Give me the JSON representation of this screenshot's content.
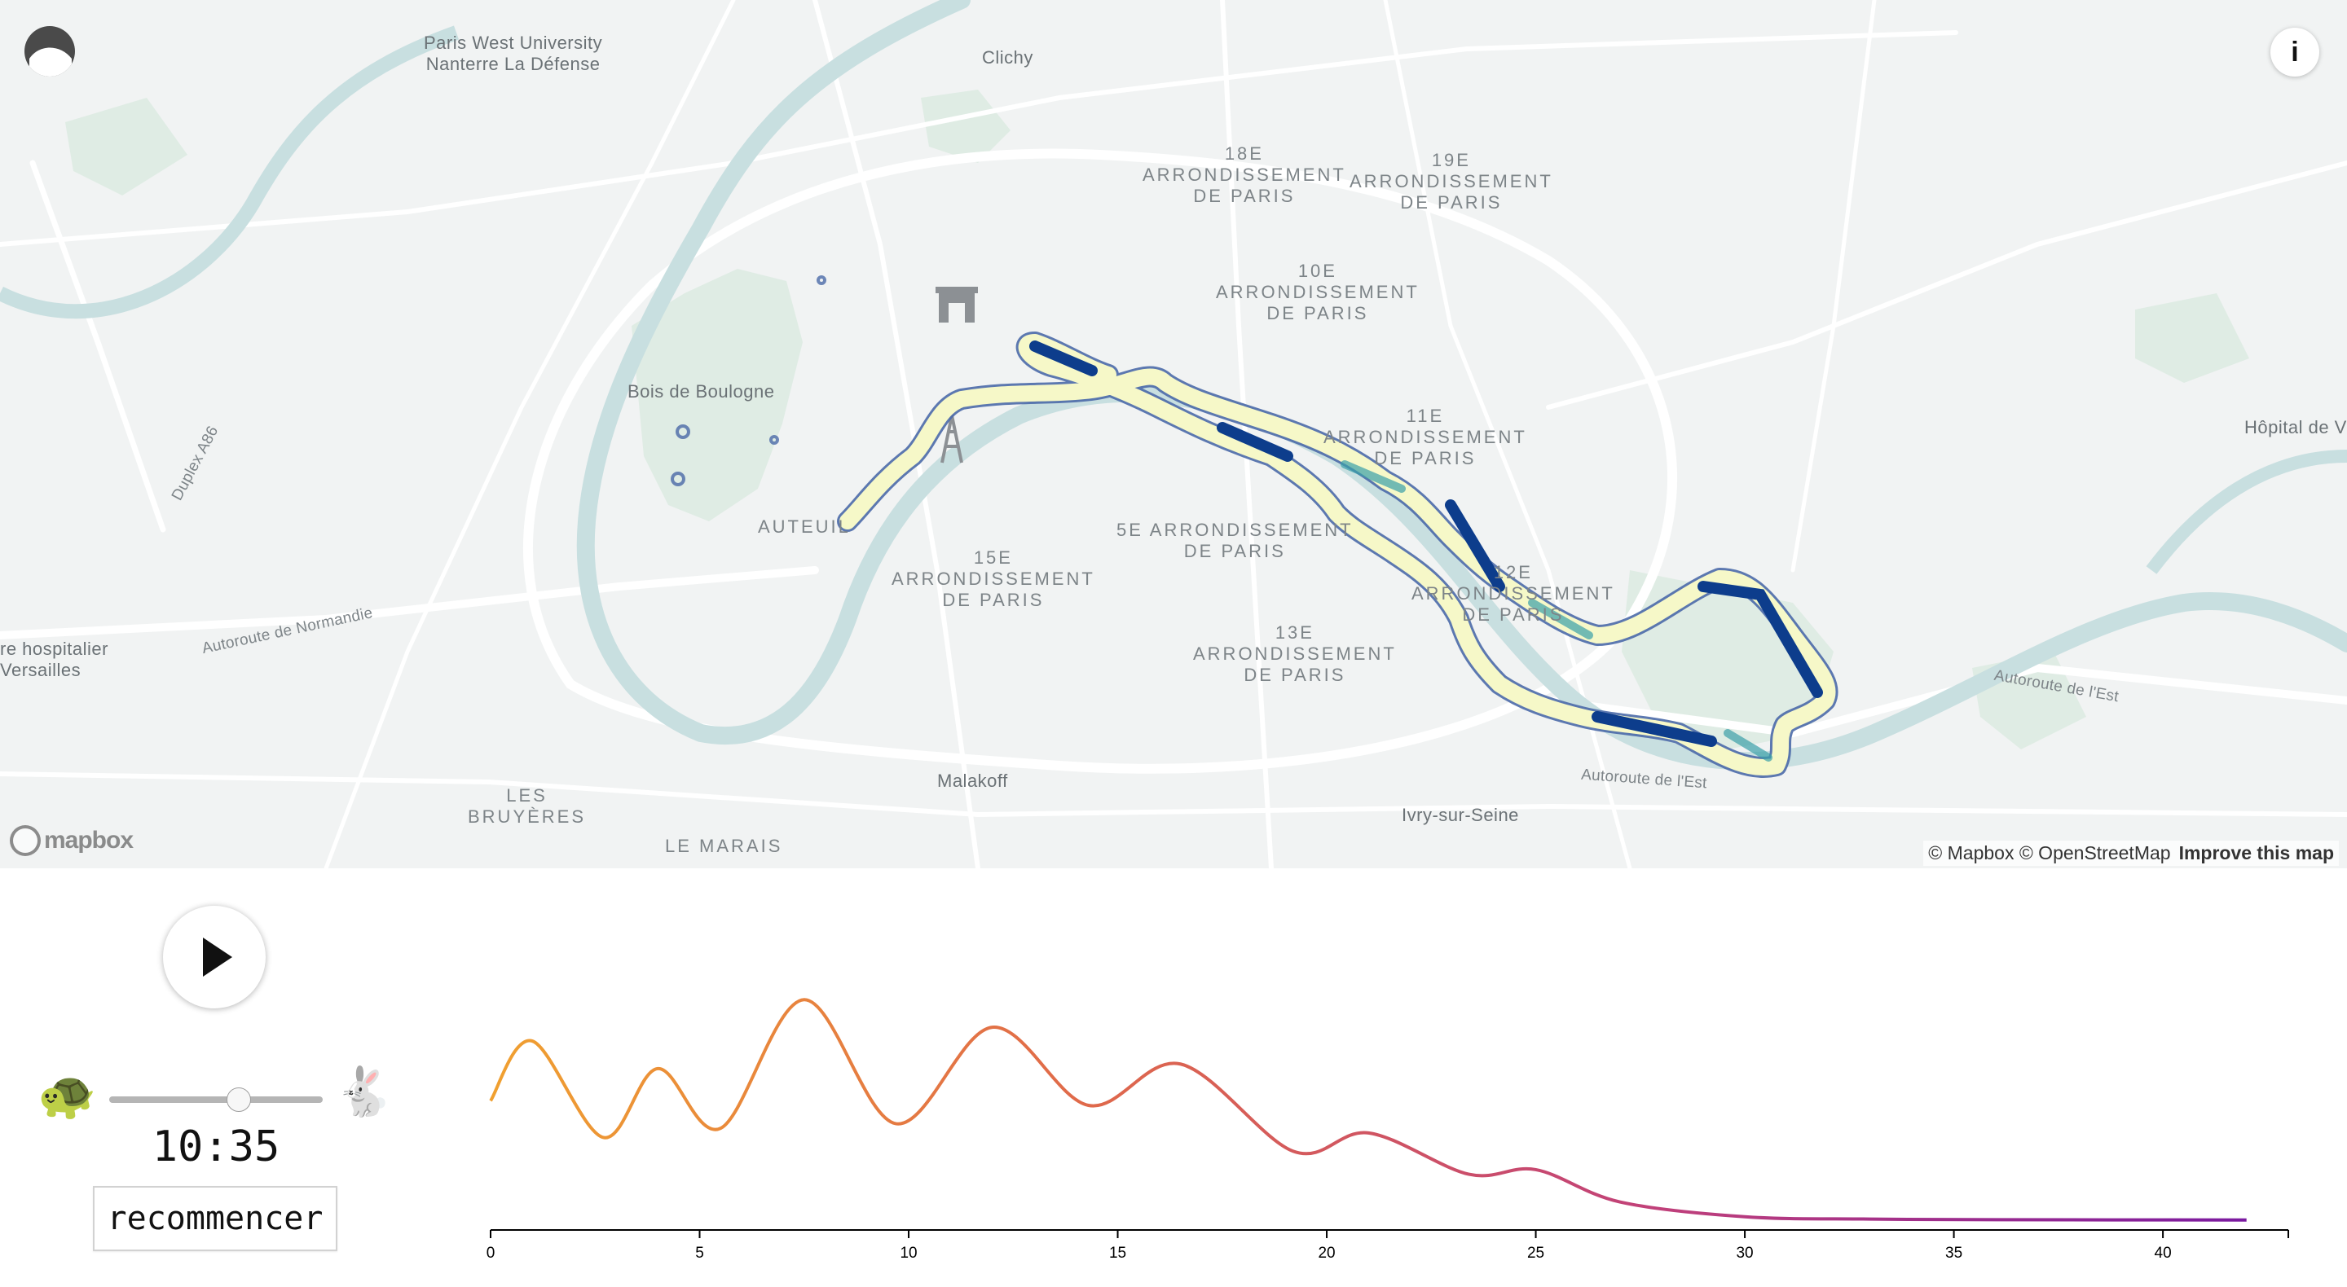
{
  "map": {
    "labels": [
      {
        "id": "paris-west-university",
        "text": "Paris West University\nNanterre La Défense",
        "kind": "place"
      },
      {
        "id": "clichy",
        "text": "Clichy",
        "kind": "place"
      },
      {
        "id": "18e",
        "text": "18E\nARRONDISSEMENT\nDE PARIS",
        "kind": "district"
      },
      {
        "id": "19e",
        "text": "19E\nARRONDISSEMENT\nDE PARIS",
        "kind": "district"
      },
      {
        "id": "10e",
        "text": "10E\nARRONDISSEMENT\nDE PARIS",
        "kind": "district"
      },
      {
        "id": "11e",
        "text": "11E\nARRONDISSEMENT\nDE PARIS",
        "kind": "district"
      },
      {
        "id": "bois-de-boulogne",
        "text": "Bois de Boulogne",
        "kind": "place"
      },
      {
        "id": "hopital",
        "text": "Hôpital de Vi",
        "kind": "place"
      },
      {
        "id": "duplex-a86",
        "text": "Duplex A86",
        "kind": "road"
      },
      {
        "id": "auteuil",
        "text": "AUTEUIL",
        "kind": "district"
      },
      {
        "id": "5e",
        "text": "5E ARRONDISSEMENT\nDE PARIS",
        "kind": "district"
      },
      {
        "id": "15e",
        "text": "15E\nARRONDISSEMENT\nDE PARIS",
        "kind": "district"
      },
      {
        "id": "12e",
        "text": "12E\nARRONDISSEMENT\nDE PARIS",
        "kind": "district"
      },
      {
        "id": "13e",
        "text": "13E\nARRONDISSEMENT\nDE PARIS",
        "kind": "district"
      },
      {
        "id": "autoroute-normandie",
        "text": "Autoroute de Normandie",
        "kind": "road"
      },
      {
        "id": "hospitalier",
        "text": "re hospitalier\nVersailles",
        "kind": "place"
      },
      {
        "id": "autoroute-est-1",
        "text": "Autoroute de l'Est",
        "kind": "road"
      },
      {
        "id": "autoroute-est-2",
        "text": "Autoroute de l'Est",
        "kind": "road"
      },
      {
        "id": "malakoff",
        "text": "Malakoff",
        "kind": "place"
      },
      {
        "id": "ivry",
        "text": "Ivry-sur-Seine",
        "kind": "place"
      },
      {
        "id": "les-bruyeres",
        "text": "LES\nBRUYÈRES",
        "kind": "district"
      },
      {
        "id": "le-marais",
        "text": "LE MARAIS",
        "kind": "district"
      }
    ],
    "info_button": "i",
    "mapbox_logo": "mapbox",
    "attribution": "© Mapbox © OpenStreetMap",
    "improve_link": "Improve this map",
    "colors": {
      "land": "#f1f3f3",
      "water": "#c8dfe0",
      "park": "#dfece4",
      "road": "#ffffff",
      "route_outline": "#4b6aa8"
    }
  },
  "controls": {
    "play_icon": "play-icon",
    "slow_icon": "🐢",
    "fast_icon": "🐇",
    "speed_level": 0.62,
    "timer": "10:35",
    "restart_label": "recommencer"
  },
  "chart_data": {
    "type": "line",
    "xlim": [
      0,
      43
    ],
    "x_ticks": [
      "0",
      "5",
      "10",
      "15",
      "20",
      "25",
      "30",
      "35",
      "40"
    ],
    "gradient": [
      "#f0a030",
      "#e06a4a",
      "#c0407a",
      "#7a1aa0"
    ],
    "x": [
      0,
      1,
      2.7,
      4,
      5.5,
      7.5,
      9.7,
      12,
      14.3,
      16.5,
      19.2,
      21,
      23.4,
      25,
      27,
      30,
      33,
      36,
      42
    ],
    "y": [
      0.52,
      0.78,
      0.36,
      0.66,
      0.4,
      0.96,
      0.42,
      0.84,
      0.5,
      0.68,
      0.3,
      0.38,
      0.2,
      0.22,
      0.08,
      0.015,
      0.005,
      0.002,
      0.001
    ]
  }
}
